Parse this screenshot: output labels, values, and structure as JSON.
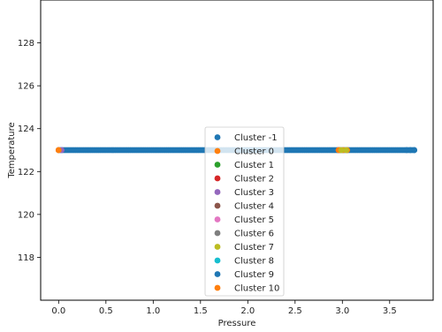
{
  "chart_data": {
    "type": "scatter",
    "title": "",
    "xlabel": "Pressure",
    "ylabel": "Temperature",
    "xlim": [
      -0.19,
      3.96
    ],
    "ylim": [
      116.0,
      130.0
    ],
    "xticks": [
      0.0,
      0.5,
      1.0,
      1.5,
      2.0,
      2.5,
      3.0,
      3.5
    ],
    "yticks": [
      118,
      120,
      122,
      124,
      126,
      128
    ],
    "xtick_labels": [
      "0.0",
      "0.5",
      "1.0",
      "1.5",
      "2.0",
      "2.5",
      "3.0",
      "3.5"
    ],
    "ytick_labels": [
      "118",
      "120",
      "122",
      "124",
      "126",
      "128"
    ],
    "grid": false,
    "legend_position": "lower center",
    "series": [
      {
        "name": "Cluster -1",
        "color": "#1f77b4",
        "x_range": [
          0.0,
          3.76
        ],
        "x_step": 0.02,
        "y": 123.0
      },
      {
        "name": "Cluster 0",
        "color": "#ff7f0e",
        "x": [
          0.0,
          2.96,
          2.97,
          3.01,
          3.05
        ],
        "y": [
          123.0,
          123.0,
          123.0,
          123.0,
          123.0
        ]
      },
      {
        "name": "Cluster 1",
        "color": "#2ca02c",
        "x": [],
        "y": []
      },
      {
        "name": "Cluster 2",
        "color": "#d62728",
        "x": [],
        "y": []
      },
      {
        "name": "Cluster 3",
        "color": "#9467bd",
        "x": [
          0.03
        ],
        "y": [
          123.0
        ]
      },
      {
        "name": "Cluster 4",
        "color": "#8c564b",
        "x": [],
        "y": []
      },
      {
        "name": "Cluster 5",
        "color": "#e377c2",
        "x": [],
        "y": []
      },
      {
        "name": "Cluster 6",
        "color": "#7f7f7f",
        "x": [],
        "y": []
      },
      {
        "name": "Cluster 7",
        "color": "#bcbd22",
        "x": [
          2.99,
          3.04
        ],
        "y": [
          123.0,
          123.0
        ]
      },
      {
        "name": "Cluster 8",
        "color": "#17becf",
        "x": [],
        "y": []
      },
      {
        "name": "Cluster 9",
        "color": "#1f77b4",
        "x": [
          3.68,
          3.72,
          3.76
        ],
        "y": [
          123.0,
          123.0,
          123.0
        ]
      },
      {
        "name": "Cluster 10",
        "color": "#ff7f0e",
        "x": [
          0.0
        ],
        "y": [
          123.0
        ]
      }
    ]
  }
}
